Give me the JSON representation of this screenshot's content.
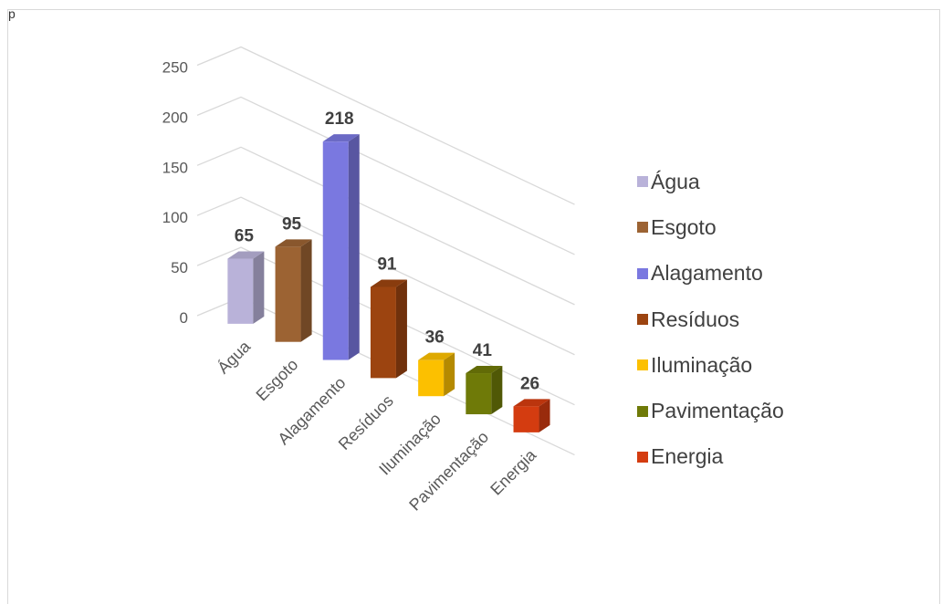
{
  "corner_text": "p",
  "chart_data": {
    "type": "bar",
    "title": "",
    "xlabel": "",
    "ylabel": "",
    "ylim": [
      0,
      250
    ],
    "yticks": [
      0,
      50,
      100,
      150,
      200,
      250
    ],
    "grid": true,
    "legend_position": "right",
    "categories": [
      "Água",
      "Esgoto",
      "Alagamento",
      "Resíduos",
      "Iluminação",
      "Pavimentação",
      "Energia"
    ],
    "values": [
      65,
      95,
      218,
      91,
      36,
      41,
      26
    ],
    "data_labels": [
      "65",
      "95",
      "218",
      "91",
      "36",
      "41",
      "26"
    ],
    "colors": [
      "#b9b2d9",
      "#9c6333",
      "#7a78e0",
      "#9c4410",
      "#fcc000",
      "#6f7a08",
      "#d43c10"
    ],
    "legend": [
      "Água",
      "Esgoto",
      "Alagamento",
      "Resíduos",
      "Iluminação",
      "Pavimentação",
      "Energia"
    ]
  }
}
